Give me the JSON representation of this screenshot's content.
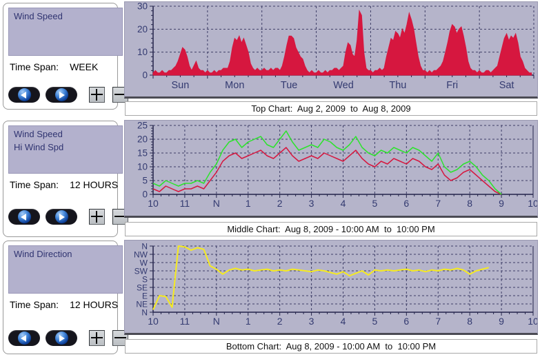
{
  "panels": [
    {
      "labels": [
        "Wind Speed"
      ],
      "time_span_label": "Time Span:",
      "time_span": "WEEK"
    },
    {
      "labels": [
        "Wind Speed",
        "Hi Wind Spd"
      ],
      "time_span_label": "Time Span:",
      "time_span": "12 HOURS"
    },
    {
      "labels": [
        "Wind Direction"
      ],
      "time_span_label": "Time Span:",
      "time_span": "12 HOURS"
    }
  ],
  "colors": {
    "chart_bg": "#b5b4ca",
    "grid": "#3d3d66",
    "axis": "#23234a",
    "tick_text": "#333a70",
    "red": "#d6173f",
    "green": "#2ce32c",
    "yellow": "#f6eb1f",
    "panel_label_text": "#2f3370"
  },
  "chart_data": [
    {
      "type": "area",
      "caption": "Top Chart:  Aug 2, 2009  to  Aug 8, 2009",
      "x_tick_labels": [
        "Sun",
        "Mon",
        "Tue",
        "Wed",
        "Thu",
        "Fri",
        "Sat"
      ],
      "xlim_days": [
        0,
        7
      ],
      "ylim": [
        0,
        30
      ],
      "yticks": [
        0,
        10,
        20,
        30
      ],
      "y_minor_step": 2,
      "grid": "dashed",
      "series": [
        {
          "name": "Wind Speed",
          "color_key": "red",
          "values": [
            1,
            2,
            1,
            1,
            2,
            1,
            1,
            2,
            2,
            3,
            4,
            6,
            9,
            12,
            11,
            8,
            4,
            2,
            4,
            6,
            3,
            2,
            2,
            1,
            2,
            1,
            1,
            2,
            1,
            2,
            2,
            3,
            3,
            3,
            6,
            12,
            16,
            15,
            17,
            14,
            16,
            13,
            10,
            5,
            3,
            2,
            3,
            2,
            2,
            3,
            2,
            2,
            3,
            2,
            3,
            3,
            2,
            4,
            8,
            13,
            17,
            17,
            16,
            12,
            10,
            8,
            7,
            4,
            2,
            1,
            2,
            1,
            1,
            2,
            1,
            1,
            2,
            1,
            2,
            2,
            3,
            3,
            2,
            3,
            4,
            10,
            14,
            13,
            9,
            8,
            15,
            28,
            26,
            10,
            3,
            2,
            2,
            1,
            2,
            2,
            3,
            2,
            3,
            8,
            12,
            16,
            15,
            19,
            18,
            16,
            20,
            18,
            22,
            27,
            24,
            20,
            14,
            8,
            4,
            2,
            2,
            1,
            2,
            1,
            2,
            2,
            3,
            4,
            6,
            10,
            14,
            19,
            22,
            21,
            18,
            20,
            21,
            17,
            12,
            6,
            3,
            2,
            2,
            1,
            2,
            1,
            1,
            2,
            2,
            1,
            2,
            3,
            4,
            8,
            12,
            16,
            18,
            15,
            17,
            16,
            18,
            14,
            8,
            6,
            3,
            2,
            1,
            1
          ]
        }
      ]
    },
    {
      "type": "line",
      "caption": "Middle Chart:  Aug 8, 2009 - 10:00 AM  to  10:00 PM",
      "x_tick_labels": [
        "10",
        "11",
        "N",
        "1",
        "2",
        "3",
        "4",
        "5",
        "6",
        "7",
        "8",
        "9",
        "10"
      ],
      "xlim": [
        0,
        12
      ],
      "x_step": 0.2,
      "ylim": [
        0,
        25
      ],
      "yticks": [
        0,
        5,
        10,
        15,
        20,
        25
      ],
      "y_minor_step": 1,
      "grid": "dashed",
      "series": [
        {
          "name": "Wind Speed",
          "color_key": "red",
          "values": [
            2,
            1,
            3,
            2,
            1,
            2,
            2,
            3,
            2,
            5,
            8,
            12,
            14,
            15,
            13,
            14,
            15,
            16,
            14,
            13,
            15,
            17,
            14,
            12,
            13,
            14,
            13,
            15,
            14,
            13,
            12,
            14,
            16,
            13,
            11,
            10,
            12,
            11,
            13,
            12,
            11,
            13,
            12,
            10,
            9,
            11,
            7,
            5,
            6,
            8,
            9,
            7,
            5,
            3,
            1,
            0
          ]
        },
        {
          "name": "Hi Wind Spd",
          "color_key": "green",
          "values": [
            4,
            3,
            5,
            4,
            3,
            4,
            4,
            5,
            4,
            8,
            11,
            16,
            19,
            20,
            17,
            19,
            20,
            21,
            18,
            17,
            20,
            23,
            19,
            16,
            17,
            18,
            17,
            20,
            19,
            17,
            16,
            18,
            21,
            17,
            15,
            14,
            16,
            15,
            17,
            16,
            15,
            17,
            16,
            14,
            12,
            15,
            10,
            8,
            9,
            11,
            12,
            10,
            7,
            5,
            2,
            0
          ]
        }
      ]
    },
    {
      "type": "line",
      "caption": "Bottom Chart:  Aug 8, 2009 - 10:00 AM  to  10:00 PM",
      "x_tick_labels": [
        "10",
        "11",
        "N",
        "1",
        "2",
        "3",
        "4",
        "5",
        "6",
        "7",
        "8",
        "9",
        "10"
      ],
      "xlim": [
        0,
        12
      ],
      "x_step": 0.2,
      "ylim": [
        0,
        8
      ],
      "y_tick_labels": [
        "N",
        "NE",
        "E",
        "SE",
        "S",
        "SW",
        "W",
        "NW",
        "N"
      ],
      "grid": "dashed",
      "series": [
        {
          "name": "Wind Direction",
          "color_key": "yellow",
          "values": [
            0.3,
            2,
            1.9,
            0.6,
            8,
            7.9,
            7.5,
            7.8,
            7.6,
            5.6,
            5.2,
            4.6,
            5.1,
            5.3,
            5.1,
            5.2,
            5,
            5.1,
            5.2,
            5,
            5.1,
            5,
            5.2,
            5.1,
            5,
            4.9,
            5.1,
            5,
            4.8,
            4.6,
            4.9,
            4.4,
            4.7,
            5,
            4.5,
            5.1,
            5,
            5.1,
            5,
            5.1,
            5.2,
            5,
            5.1,
            4.9,
            5.1,
            5,
            5.2,
            5.1,
            5.3,
            5.1,
            4.6,
            5,
            5.2,
            5.4
          ]
        }
      ]
    }
  ]
}
